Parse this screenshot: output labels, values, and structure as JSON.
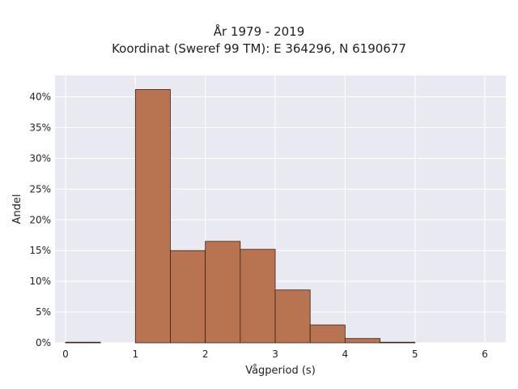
{
  "chart_data": {
    "type": "bar",
    "title_lines": [
      "År 1979 - 2019",
      "Koordinat (Sweref 99 TM): E 364296, N 6190677"
    ],
    "xlabel": "Vågperiod (s)",
    "ylabel": "Andel",
    "xlim": [
      -0.15,
      6.3
    ],
    "ylim": [
      0,
      0.435
    ],
    "x_ticks": [
      {
        "value": 0,
        "label": "0"
      },
      {
        "value": 1,
        "label": "1"
      },
      {
        "value": 2,
        "label": "2"
      },
      {
        "value": 3,
        "label": "3"
      },
      {
        "value": 4,
        "label": "4"
      },
      {
        "value": 5,
        "label": "5"
      },
      {
        "value": 6,
        "label": "6"
      }
    ],
    "y_ticks": [
      {
        "value": 0.0,
        "label": "0%"
      },
      {
        "value": 0.05,
        "label": "5%"
      },
      {
        "value": 0.1,
        "label": "10%"
      },
      {
        "value": 0.15,
        "label": "15%"
      },
      {
        "value": 0.2,
        "label": "20%"
      },
      {
        "value": 0.25,
        "label": "25%"
      },
      {
        "value": 0.3,
        "label": "30%"
      },
      {
        "value": 0.35,
        "label": "35%"
      },
      {
        "value": 0.4,
        "label": "40%"
      }
    ],
    "bins": [
      {
        "x0": 0.0,
        "x1": 0.5,
        "value": 0.001
      },
      {
        "x0": 1.0,
        "x1": 1.5,
        "value": 0.412
      },
      {
        "x0": 1.5,
        "x1": 2.0,
        "value": 0.15
      },
      {
        "x0": 2.0,
        "x1": 2.5,
        "value": 0.165
      },
      {
        "x0": 2.5,
        "x1": 3.0,
        "value": 0.152
      },
      {
        "x0": 3.0,
        "x1": 3.5,
        "value": 0.086
      },
      {
        "x0": 3.5,
        "x1": 4.0,
        "value": 0.029
      },
      {
        "x0": 4.0,
        "x1": 4.5,
        "value": 0.007
      },
      {
        "x0": 4.5,
        "x1": 5.0,
        "value": 0.001
      }
    ],
    "bar_color": "#b87350",
    "bar_edge_color": "#3a2418",
    "grid": true,
    "plot_background": "#e9e9f1"
  }
}
